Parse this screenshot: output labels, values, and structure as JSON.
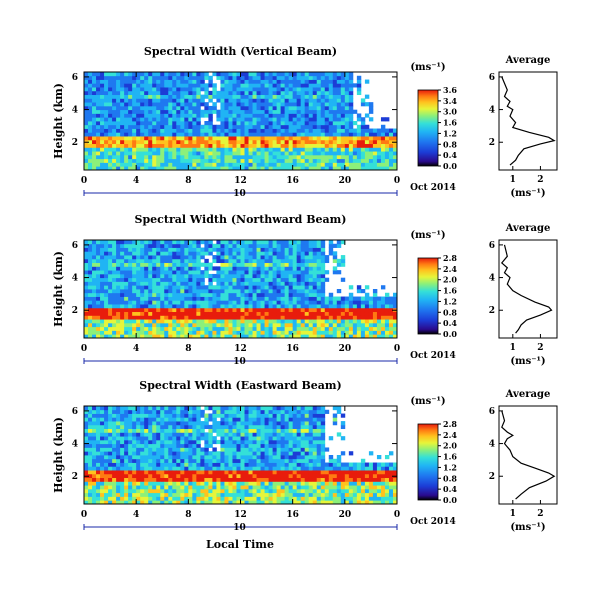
{
  "figure": {
    "panels": [
      {
        "title": "Spectral Width (Vertical Beam)",
        "ylabel": "Height (km)",
        "unit": "(ms⁻¹)",
        "cbar_ticks": [
          "3.6",
          "3.4",
          "3.0",
          "1.6",
          "1.2",
          "0.8",
          "0.4",
          "0.0"
        ],
        "x_ticks": [
          "0",
          "4",
          "8",
          "12",
          "16",
          "20",
          "0"
        ],
        "y_ticks": [
          "6",
          "4",
          "2"
        ],
        "date_label": "10",
        "month_label": "Oct 2014",
        "avg_title": "Average",
        "avg_x_ticks": [
          "1",
          "2"
        ],
        "avg_y_ticks": [
          "6",
          "4",
          "2"
        ],
        "avg_xlabel": "(ms⁻¹)"
      },
      {
        "title": "Spectral Width (Northward Beam)",
        "ylabel": "Height (km)",
        "unit": "(ms⁻¹)",
        "cbar_ticks": [
          "2.8",
          "2.4",
          "2.0",
          "1.6",
          "1.2",
          "0.8",
          "0.4",
          "0.0"
        ],
        "x_ticks": [
          "0",
          "4",
          "8",
          "12",
          "16",
          "20",
          "0"
        ],
        "y_ticks": [
          "6",
          "4",
          "2"
        ],
        "date_label": "10",
        "month_label": "Oct 2014",
        "avg_title": "Average",
        "avg_x_ticks": [
          "1",
          "2"
        ],
        "avg_y_ticks": [
          "6",
          "4",
          "2"
        ],
        "avg_xlabel": "(ms⁻¹)"
      },
      {
        "title": "Spectral Width (Eastward Beam)",
        "ylabel": "Height (km)",
        "unit": "(ms⁻¹)",
        "cbar_ticks": [
          "2.8",
          "2.4",
          "2.0",
          "1.6",
          "1.2",
          "0.8",
          "0.4",
          "0.0"
        ],
        "x_ticks": [
          "0",
          "4",
          "8",
          "12",
          "16",
          "20",
          "0"
        ],
        "y_ticks": [
          "6",
          "4",
          "2"
        ],
        "date_label": "10",
        "month_label": "Oct 2014",
        "avg_title": "Average",
        "avg_x_ticks": [
          "1",
          "2"
        ],
        "avg_y_ticks": [
          "6",
          "4",
          "2"
        ],
        "avg_xlabel": "(ms⁻¹)"
      }
    ],
    "xlabel_bottom": "Local Time",
    "colormap": [
      "#2a0a8c",
      "#1c3cd6",
      "#1f78f0",
      "#20b4f4",
      "#34e0d8",
      "#8cf07a",
      "#e6f53a",
      "#ffc21e",
      "#ff7a12",
      "#e81c0c"
    ]
  },
  "chart_data": [
    {
      "type": "heatmap",
      "title": "Spectral Width (Vertical Beam)",
      "xlabel": "",
      "ylabel": "Height (km)",
      "xlim": [
        0,
        24
      ],
      "ylim": [
        0.3,
        6.3
      ],
      "zlim": [
        0.0,
        3.6
      ],
      "colorbar_label": "(ms⁻¹)",
      "features": {
        "layer_height": 2.1,
        "layer_value": 2.4,
        "upper_value": 0.9,
        "lower_value": 1.4,
        "gap_start": 20.5
      },
      "average_profile": {
        "xlim": [
          0.5,
          2.6
        ],
        "x": [
          0.6,
          0.8,
          0.7,
          0.9,
          0.8,
          1.0,
          0.9,
          1.1,
          1.0,
          1.6,
          2.3,
          2.5,
          2.0,
          1.4,
          1.2,
          1.1,
          0.9
        ],
        "y": [
          6.0,
          5.2,
          4.8,
          4.5,
          4.2,
          4.0,
          3.6,
          3.2,
          2.9,
          2.6,
          2.3,
          2.1,
          1.9,
          1.6,
          1.2,
          0.9,
          0.6
        ]
      }
    },
    {
      "type": "heatmap",
      "title": "Spectral Width (Northward Beam)",
      "xlabel": "",
      "ylabel": "Height (km)",
      "xlim": [
        0,
        24
      ],
      "ylim": [
        0.3,
        6.3
      ],
      "zlim": [
        0.0,
        2.8
      ],
      "colorbar_label": "(ms⁻¹)",
      "features": {
        "layer_height": 1.9,
        "layer_value": 2.3,
        "upper_value": 0.8,
        "lower_value": 1.3,
        "gap_start": 18.5
      },
      "average_profile": {
        "xlim": [
          0.5,
          2.6
        ],
        "x": [
          0.7,
          0.8,
          0.6,
          0.8,
          0.7,
          0.9,
          0.8,
          1.0,
          1.3,
          1.8,
          2.3,
          2.4,
          2.0,
          1.5,
          1.3,
          1.2,
          1.1
        ],
        "y": [
          6.0,
          5.3,
          4.9,
          4.6,
          4.3,
          4.0,
          3.6,
          3.2,
          2.9,
          2.5,
          2.2,
          2.0,
          1.7,
          1.4,
          1.1,
          0.8,
          0.6
        ]
      }
    },
    {
      "type": "heatmap",
      "title": "Spectral Width (Eastward Beam)",
      "xlabel": "Local Time",
      "ylabel": "Height (km)",
      "xlim": [
        0,
        24
      ],
      "ylim": [
        0.3,
        6.3
      ],
      "zlim": [
        0.0,
        2.8
      ],
      "colorbar_label": "(ms⁻¹)",
      "features": {
        "layer_height": 2.0,
        "layer_value": 2.3,
        "upper_value": 0.8,
        "lower_value": 1.3,
        "gap_start": 18.5
      },
      "average_profile": {
        "xlim": [
          0.5,
          2.6
        ],
        "x": [
          0.6,
          0.7,
          0.6,
          0.8,
          1.0,
          0.8,
          0.7,
          0.9,
          1.0,
          1.3,
          1.8,
          2.3,
          2.5,
          2.2,
          1.6,
          1.3,
          1.1
        ],
        "y": [
          6.0,
          5.4,
          5.0,
          4.7,
          4.5,
          4.3,
          4.0,
          3.6,
          3.2,
          2.8,
          2.5,
          2.2,
          2.0,
          1.7,
          1.3,
          0.9,
          0.6
        ]
      }
    }
  ]
}
